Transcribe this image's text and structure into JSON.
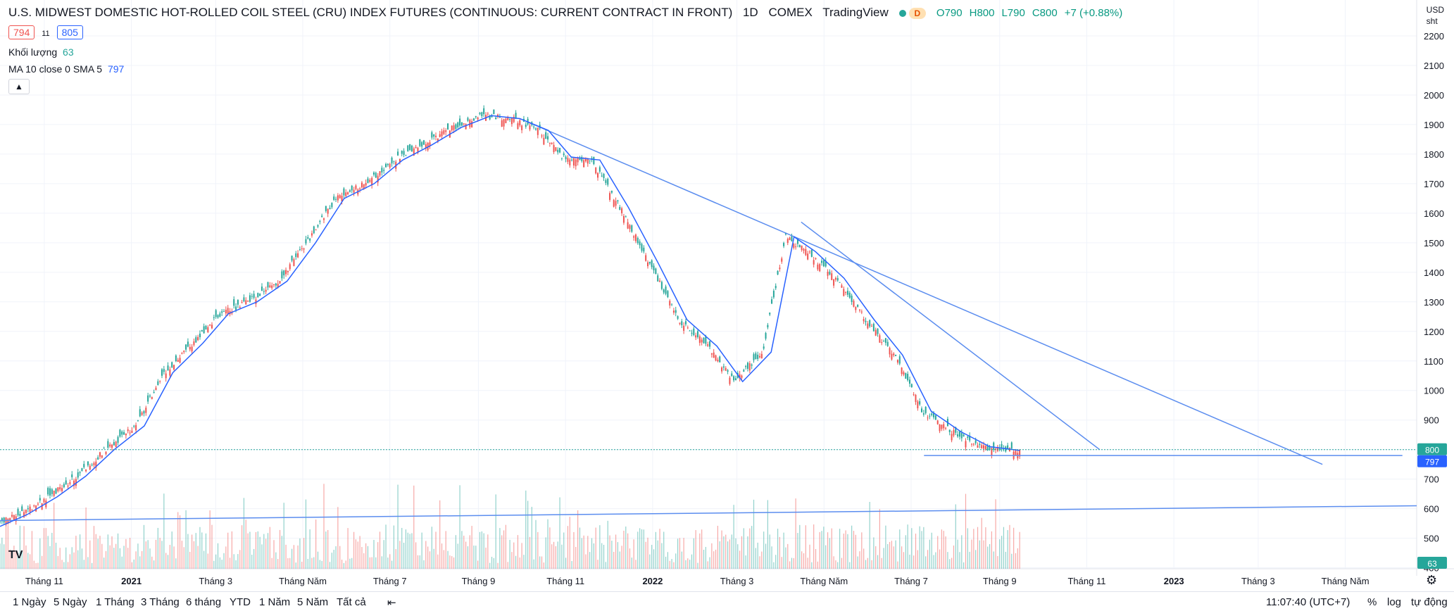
{
  "header": {
    "symbol_title": "U.S. MIDWEST DOMESTIC HOT-ROLLED COIL STEEL (CRU) INDEX FUTURES (CONTINUOUS: CURRENT CONTRACT IN FRONT)",
    "interval": "1D",
    "exchange": "COMEX",
    "provider": "TradingView",
    "badge": "D",
    "ohlc": {
      "o": "O790",
      "h": "H800",
      "l": "L790",
      "c": "C800",
      "change": "+7 (+0.88%)"
    },
    "bid": "794",
    "spread": "11",
    "ask": "805",
    "colors": {
      "up": "#26a69a",
      "down": "#ef5350",
      "ma": "#2962ff",
      "trend": "#5b8def"
    }
  },
  "indicators": {
    "volume_label": "Khối lượng",
    "volume_value": "63",
    "ma_label": "MA 10 close 0 SMA 5",
    "ma_value": "797",
    "collapse_icon": "chevron-up-icon"
  },
  "price_axis": {
    "currency": "USD",
    "unit": "sht",
    "ticks": [
      "2200",
      "2100",
      "2000",
      "1900",
      "1800",
      "1700",
      "1600",
      "1500",
      "1400",
      "1300",
      "1200",
      "1100",
      "1000",
      "900",
      "800",
      "700",
      "600",
      "500",
      "400"
    ],
    "last_price_label": "800",
    "ma_label": "797",
    "volume_label": "63"
  },
  "time_axis": {
    "ticks": [
      "Tháng 11",
      "2021",
      "Tháng 3",
      "Tháng Năm",
      "Tháng 7",
      "Tháng 9",
      "Tháng 11",
      "2022",
      "Tháng 3",
      "Tháng Năm",
      "Tháng 7",
      "Tháng 9",
      "Tháng 11",
      "2023",
      "Tháng 3",
      "Tháng Năm"
    ]
  },
  "bottom_bar": {
    "ranges": [
      "1 Ngày",
      "5 Ngày",
      "1 Tháng",
      "3 Tháng",
      "6 tháng",
      "YTD",
      "1 Năm",
      "5 Năm",
      "Tất cả"
    ],
    "compare_icon": "calendar-range-icon",
    "clock": "11:07:40 (UTC+7)",
    "percent": "%",
    "log": "log",
    "auto": "tự động"
  },
  "chart_data": {
    "type": "line",
    "ylim": [
      380,
      2250
    ],
    "x_range": [
      "2020-10-01",
      "2023-06-20"
    ],
    "series": [
      {
        "x": [
          "2020-10-01",
          "2020-10-20",
          "2020-11-10",
          "2020-11-30",
          "2020-12-20",
          "2021-01-10",
          "2021-01-30",
          "2021-02-20",
          "2021-03-10",
          "2021-03-30",
          "2021-04-20",
          "2021-05-10",
          "2021-05-30",
          "2021-06-20",
          "2021-07-10",
          "2021-07-30",
          "2021-08-20",
          "2021-09-10",
          "2021-09-30",
          "2021-10-20",
          "2021-11-05",
          "2021-11-25",
          "2021-12-15",
          "2022-01-05",
          "2022-01-25",
          "2022-02-15",
          "2022-03-05",
          "2022-03-25",
          "2022-04-10",
          "2022-04-25",
          "2022-05-15",
          "2022-06-05",
          "2022-06-25",
          "2022-07-15",
          "2022-08-05",
          "2022-08-25",
          "2022-09-15"
        ],
        "y": [
          540,
          580,
          640,
          710,
          800,
          880,
          1060,
          1160,
          1260,
          1300,
          1370,
          1500,
          1650,
          1700,
          1780,
          1830,
          1890,
          1930,
          1920,
          1880,
          1790,
          1780,
          1620,
          1430,
          1240,
          1150,
          1030,
          1130,
          1520,
          1470,
          1380,
          1240,
          1120,
          930,
          860,
          810,
          797
        ]
      }
    ],
    "volume": {
      "y_max_label": "63"
    },
    "trendlines": [
      {
        "from": [
          "2021-10-05",
          1910
        ],
        "to": [
          "2023-04-15",
          750
        ]
      },
      {
        "from": [
          "2022-04-15",
          1570
        ],
        "to": [
          "2022-11-10",
          800
        ]
      },
      {
        "from": [
          "2022-07-10",
          780
        ],
        "to": [
          "2023-06-10",
          780
        ]
      },
      {
        "from": [
          "2020-10-01",
          560
        ],
        "to": [
          "2023-06-20",
          610
        ]
      }
    ]
  }
}
